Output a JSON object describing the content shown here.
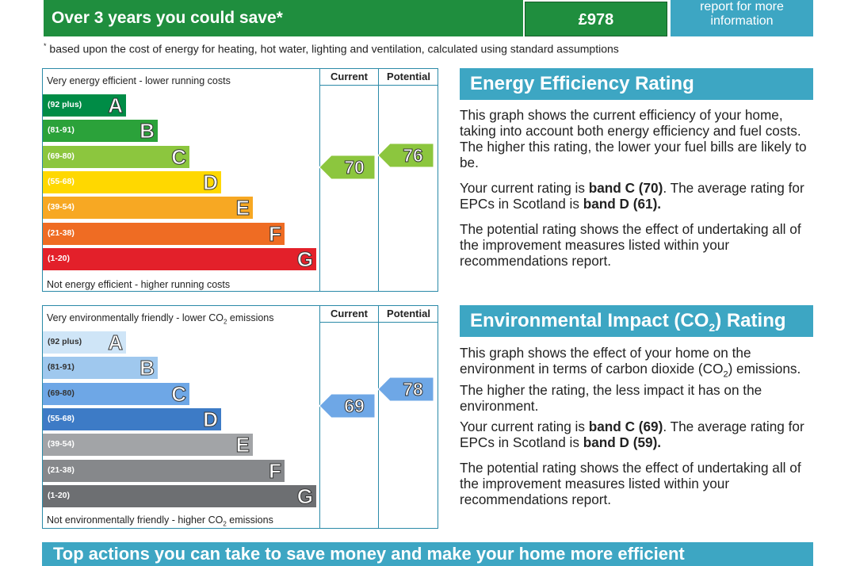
{
  "savings": {
    "label": "Over 3 years you could save",
    "asterisk": "*",
    "amount": "£978",
    "report_line1": "report for more",
    "report_line2": "information"
  },
  "footnote": {
    "marker": "*",
    "text": "based upon the cost of energy for heating, hot water, lighting and ventilation, calculated using standard assumptions"
  },
  "energy_chart": {
    "top_label": "Very energy efficient - lower running costs",
    "bottom_label": "Not energy efficient - higher running costs",
    "col_current": "Current",
    "col_potential": "Potential",
    "bands": [
      {
        "range": "(92 plus)",
        "letter": "A",
        "color": "#008c46"
      },
      {
        "range": "(81-91)",
        "letter": "B",
        "color": "#2ba23a"
      },
      {
        "range": "(69-80)",
        "letter": "C",
        "color": "#8cc63e"
      },
      {
        "range": "(55-68)",
        "letter": "D",
        "color": "#ffd800"
      },
      {
        "range": "(39-54)",
        "letter": "E",
        "color": "#f7a823"
      },
      {
        "range": "(21-38)",
        "letter": "F",
        "color": "#ef6c23"
      },
      {
        "range": "(1-20)",
        "letter": "G",
        "color": "#e3202a"
      }
    ],
    "current": {
      "value": "70",
      "band": "C",
      "color": "#8cc63e"
    },
    "potential": {
      "value": "76",
      "band": "C",
      "color": "#8cc63e"
    }
  },
  "co2_chart": {
    "top_label": "Very environmentally friendly - lower CO",
    "top_label_sub": "2",
    "top_label_end": " emissions",
    "bottom_label": "Not environmentally friendly - higher CO",
    "bottom_label_sub": "2",
    "bottom_label_end": " emissions",
    "col_current": "Current",
    "col_potential": "Potential",
    "bands": [
      {
        "range": "(92 plus)",
        "letter": "A",
        "color": "#cfe5f7"
      },
      {
        "range": "(81-91)",
        "letter": "B",
        "color": "#9fc8ee"
      },
      {
        "range": "(69-80)",
        "letter": "C",
        "color": "#6ea7e6"
      },
      {
        "range": "(55-68)",
        "letter": "D",
        "color": "#3d7bc6"
      },
      {
        "range": "(39-54)",
        "letter": "E",
        "color": "#a2a4a7"
      },
      {
        "range": "(21-38)",
        "letter": "F",
        "color": "#86888b"
      },
      {
        "range": "(1-20)",
        "letter": "G",
        "color": "#6d6f72"
      }
    ],
    "current": {
      "value": "69",
      "band": "C",
      "color": "#6ea7e6"
    },
    "potential": {
      "value": "78",
      "band": "C",
      "color": "#6ea7e6"
    }
  },
  "energy_panel": {
    "title": "Energy Efficiency Rating",
    "p1": "This graph shows the current efficiency of your home, taking into account both energy efficiency and fuel costs. The higher this rating, the lower your fuel bills are likely to be.",
    "p2_a": "Your current rating is ",
    "p2_b": "band C (70)",
    "p2_c": ". The average rating for EPCs in Scotland is ",
    "p2_d": "band D (61).",
    "p3": "The potential rating shows the effect of undertaking all of the improvement measures listed within your recommendations report."
  },
  "co2_panel": {
    "title_a": "Environmental Impact (CO",
    "title_sub": "2",
    "title_b": ") Rating",
    "p1_a": "This graph shows the effect of your home on the environment in terms of carbon dioxide (CO",
    "p1_sub": "2",
    "p1_b": ") emissions. The higher the rating, the less impact it has on the environment.",
    "p2_a": "Your current rating is ",
    "p2_b": "band C (69)",
    "p2_c": ". The average rating for EPCs in Scotland is ",
    "p2_d": "band D (59).",
    "p3": "The potential rating shows the effect of undertaking all of the improvement measures listed within your recommendations report."
  },
  "bottom_banner": "Top actions you can take to save money and make your home more efficient"
}
